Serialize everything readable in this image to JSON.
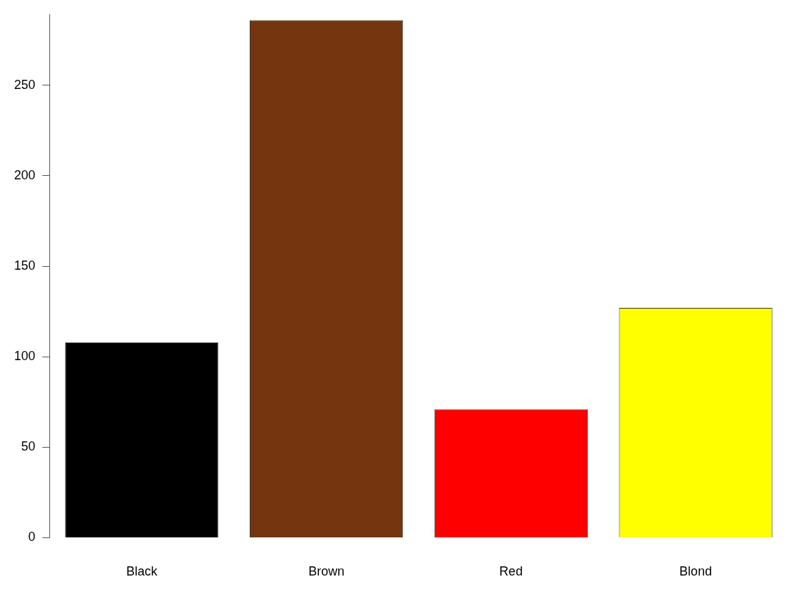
{
  "chart_data": {
    "type": "bar",
    "categories": [
      "Black",
      "Brown",
      "Red",
      "Blond"
    ],
    "values": [
      108,
      286,
      71,
      127
    ],
    "colors": [
      "#000000",
      "#74350f",
      "#ff0000",
      "#ffff00"
    ],
    "ylim": [
      0,
      289
    ],
    "yticks": [
      0,
      50,
      100,
      150,
      200,
      250
    ]
  }
}
